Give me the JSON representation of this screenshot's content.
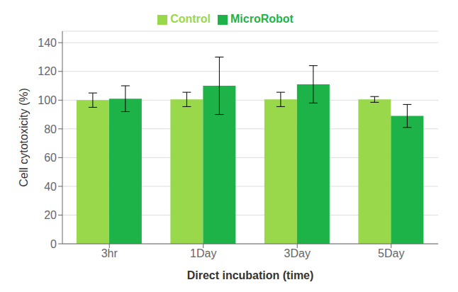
{
  "chart_data": {
    "type": "bar",
    "categories": [
      "3hr",
      "1Day",
      "3Day",
      "5Day"
    ],
    "series": [
      {
        "name": "Control",
        "color": "#99d84a",
        "values": [
          100,
          100.5,
          100.5,
          100.5
        ],
        "errors": [
          5,
          5,
          5,
          2
        ]
      },
      {
        "name": "MicroRobot",
        "color": "#1db348",
        "values": [
          101,
          110,
          111,
          89
        ],
        "errors": [
          9,
          20,
          13,
          8
        ]
      }
    ],
    "xlabel": "Direct incubation (time)",
    "ylabel": "Cell cytotoxicity (%)",
    "ylim": [
      0,
      148
    ],
    "yticks": [
      0,
      20,
      40,
      60,
      80,
      100,
      120,
      140
    ],
    "grid": true,
    "legend": "top"
  }
}
